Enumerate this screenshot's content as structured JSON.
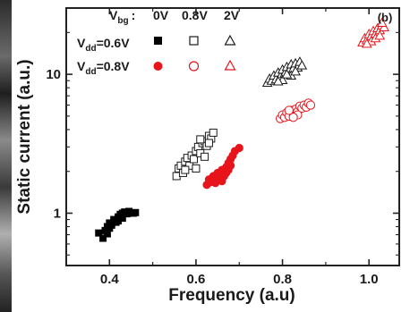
{
  "chart_data": {
    "type": "scatter",
    "panel_label": "(b)",
    "xlabel": "Frequency (a.u)",
    "ylabel": "Static current (a.u.)",
    "xlim": [
      0.3,
      1.07
    ],
    "ylim": [
      0.42,
      30
    ],
    "yscale": "log",
    "x_ticks": [
      0.4,
      0.6,
      0.8,
      1.0
    ],
    "x_tick_labels": [
      "0.4",
      "0.6",
      "0.8",
      "1.0"
    ],
    "y_ticks": [
      1,
      10
    ],
    "y_tick_labels": [
      "1",
      "10"
    ],
    "legend": {
      "header_label": "V",
      "header_sub": "bg",
      "header_colon": ":",
      "columns": [
        "0V",
        "0.8V",
        "2V"
      ],
      "rows": [
        {
          "label": "V",
          "sub": "dd",
          "value": "=0.6V",
          "color": "#000000"
        },
        {
          "label": "V",
          "sub": "dd",
          "value": "=0.8V",
          "color": "#e8141b"
        }
      ]
    },
    "series": [
      {
        "vdd": "0.6V",
        "vbg": "0V",
        "marker": "square-filled",
        "color": "#000000",
        "points": [
          [
            0.375,
            0.72
          ],
          [
            0.385,
            0.66
          ],
          [
            0.39,
            0.75
          ],
          [
            0.395,
            0.8
          ],
          [
            0.4,
            0.85
          ],
          [
            0.4,
            0.78
          ],
          [
            0.41,
            0.9
          ],
          [
            0.415,
            0.86
          ],
          [
            0.42,
            0.94
          ],
          [
            0.425,
            0.98
          ],
          [
            0.43,
            0.92
          ],
          [
            0.435,
            1.02
          ],
          [
            0.44,
            0.99
          ],
          [
            0.445,
            1.03
          ],
          [
            0.455,
            1.0
          ],
          [
            0.46,
            1.01
          ],
          [
            0.395,
            0.71
          ],
          [
            0.405,
            0.82
          ],
          [
            0.42,
            0.88
          ],
          [
            0.43,
            1.0
          ]
        ]
      },
      {
        "vdd": "0.6V",
        "vbg": "0.8V",
        "marker": "square-open",
        "color": "#1a1a1a",
        "points": [
          [
            0.555,
            1.85
          ],
          [
            0.56,
            2.1
          ],
          [
            0.565,
            2.2
          ],
          [
            0.57,
            1.95
          ],
          [
            0.575,
            2.35
          ],
          [
            0.58,
            2.5
          ],
          [
            0.585,
            2.2
          ],
          [
            0.59,
            2.6
          ],
          [
            0.595,
            2.45
          ],
          [
            0.6,
            2.8
          ],
          [
            0.605,
            3.0
          ],
          [
            0.61,
            2.7
          ],
          [
            0.615,
            3.2
          ],
          [
            0.62,
            3.3
          ],
          [
            0.625,
            3.05
          ],
          [
            0.63,
            3.6
          ],
          [
            0.635,
            3.45
          ],
          [
            0.64,
            3.8
          ],
          [
            0.6,
            2.1
          ],
          [
            0.62,
            2.55
          ],
          [
            0.575,
            2.05
          ],
          [
            0.61,
            3.4
          ],
          [
            0.63,
            3.2
          ]
        ]
      },
      {
        "vdd": "0.6V",
        "vbg": "2V",
        "marker": "triangle-open",
        "color": "#1a1a1a",
        "points": [
          [
            0.765,
            8.7
          ],
          [
            0.77,
            9.3
          ],
          [
            0.775,
            9.0
          ],
          [
            0.78,
            9.8
          ],
          [
            0.785,
            9.2
          ],
          [
            0.79,
            10.3
          ],
          [
            0.795,
            9.6
          ],
          [
            0.8,
            10.8
          ],
          [
            0.805,
            10.1
          ],
          [
            0.81,
            11.3
          ],
          [
            0.815,
            10.6
          ],
          [
            0.82,
            11.8
          ],
          [
            0.825,
            11.0
          ],
          [
            0.83,
            12.0
          ],
          [
            0.835,
            11.2
          ],
          [
            0.84,
            12.3
          ],
          [
            0.845,
            11.6
          ],
          [
            0.8,
            9.1
          ],
          [
            0.82,
            9.8
          ],
          [
            0.79,
            8.9
          ],
          [
            0.81,
            10.0
          ],
          [
            0.83,
            10.5
          ]
        ]
      },
      {
        "vdd": "0.8V",
        "vbg": "0V",
        "marker": "circle-filled",
        "color": "#e8141b",
        "points": [
          [
            0.625,
            1.6
          ],
          [
            0.63,
            1.75
          ],
          [
            0.635,
            1.68
          ],
          [
            0.64,
            1.85
          ],
          [
            0.645,
            1.8
          ],
          [
            0.65,
            1.95
          ],
          [
            0.655,
            1.9
          ],
          [
            0.66,
            2.05
          ],
          [
            0.665,
            2.0
          ],
          [
            0.67,
            2.15
          ],
          [
            0.675,
            2.3
          ],
          [
            0.68,
            2.45
          ],
          [
            0.685,
            2.6
          ],
          [
            0.69,
            2.8
          ],
          [
            0.7,
            2.95
          ],
          [
            0.655,
            1.75
          ],
          [
            0.665,
            1.85
          ],
          [
            0.645,
            1.65
          ],
          [
            0.675,
            2.05
          ],
          [
            0.66,
            1.7
          ],
          [
            0.68,
            2.2
          ],
          [
            0.67,
            1.95
          ]
        ]
      },
      {
        "vdd": "0.8V",
        "vbg": "0.8V",
        "marker": "circle-open",
        "color": "#e8141b",
        "points": [
          [
            0.795,
            4.8
          ],
          [
            0.8,
            5.1
          ],
          [
            0.805,
            4.9
          ],
          [
            0.81,
            5.3
          ],
          [
            0.815,
            5.0
          ],
          [
            0.82,
            5.5
          ],
          [
            0.825,
            5.2
          ],
          [
            0.83,
            5.6
          ],
          [
            0.835,
            5.4
          ],
          [
            0.84,
            5.9
          ],
          [
            0.845,
            5.7
          ],
          [
            0.85,
            6.0
          ],
          [
            0.855,
            5.8
          ],
          [
            0.86,
            6.2
          ],
          [
            0.865,
            6.0
          ],
          [
            0.815,
            5.5
          ],
          [
            0.835,
            5.1
          ],
          [
            0.825,
            4.9
          ]
        ]
      },
      {
        "vdd": "0.8V",
        "vbg": "2V",
        "marker": "triangle-open",
        "color": "#e8141b",
        "points": [
          [
            0.985,
            17.0
          ],
          [
            0.99,
            18.2
          ],
          [
            0.995,
            17.6
          ],
          [
            1.0,
            19.5
          ],
          [
            1.005,
            18.8
          ],
          [
            1.01,
            20.5
          ],
          [
            1.015,
            19.6
          ],
          [
            1.02,
            21.5
          ],
          [
            1.025,
            20.8
          ],
          [
            1.03,
            22.5
          ],
          [
            1.035,
            21.8
          ],
          [
            1.005,
            17.3
          ],
          [
            1.015,
            18.2
          ],
          [
            1.025,
            19.0
          ],
          [
            1.03,
            23.5
          ],
          [
            0.995,
            16.6
          ]
        ]
      }
    ]
  }
}
